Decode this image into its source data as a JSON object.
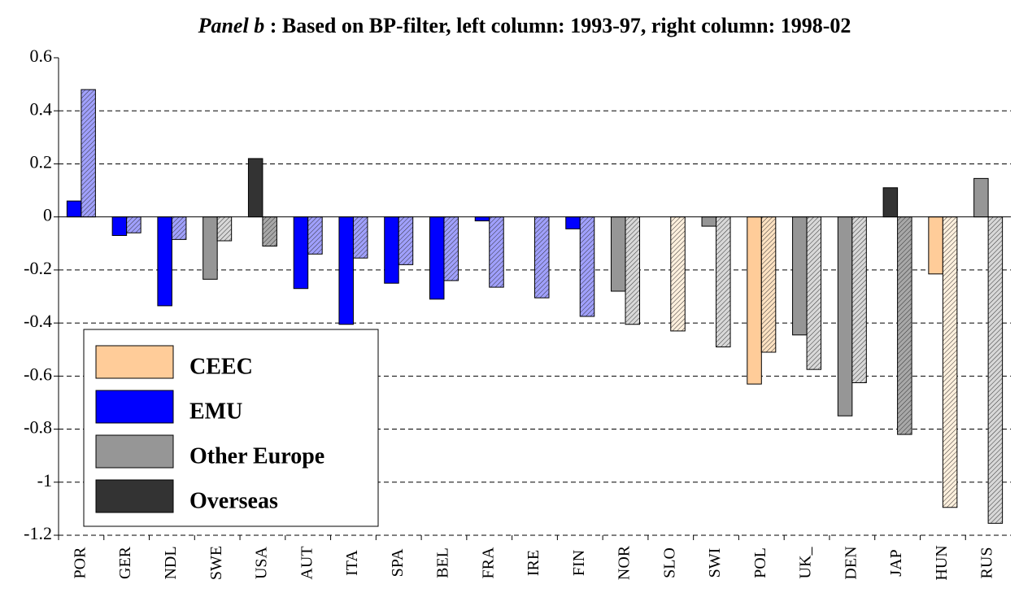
{
  "chart_data": {
    "type": "bar",
    "title_italic": "Panel b",
    "title": " : Based on BP-filter, left column: 1993-97, right column: 1998-02",
    "categories": [
      "POR",
      "GER",
      "NDL",
      "SWE",
      "USA",
      "AUT",
      "ITA",
      "SPA",
      "BEL",
      "FRA",
      "IRE",
      "FIN",
      "NOR",
      "SLO",
      "SWI",
      "POL",
      "UK_",
      "DEN",
      "JAP",
      "HUN",
      "RUS"
    ],
    "series": [
      {
        "hatch": false,
        "values": [
          0.06,
          -0.07,
          -0.335,
          -0.235,
          0.22,
          -0.27,
          -0.405,
          -0.25,
          -0.31,
          -0.015,
          null,
          -0.045,
          -0.28,
          null,
          -0.035,
          -0.63,
          -0.445,
          -0.75,
          0.11,
          -0.215,
          0.145
        ],
        "colors": [
          "#0000ff",
          "#0000ff",
          "#0000ff",
          "#969696",
          "#333333",
          "#0000ff",
          "#0000ff",
          "#0000ff",
          "#0000ff",
          "#0000ff",
          "#0000ff",
          "#0000ff",
          "#969696",
          "#ffcc99",
          "#969696",
          "#ffcc99",
          "#969696",
          "#969696",
          "#333333",
          "#ffcc99",
          "#969696"
        ]
      },
      {
        "hatch": true,
        "values": [
          0.48,
          -0.06,
          -0.085,
          -0.09,
          -0.11,
          -0.14,
          -0.155,
          -0.18,
          -0.24,
          -0.265,
          -0.305,
          -0.375,
          -0.405,
          -0.43,
          -0.49,
          -0.51,
          -0.575,
          -0.625,
          -0.82,
          -1.095,
          -1.155
        ],
        "colors": [
          "#a0a0ff",
          "#a0a0ff",
          "#a0a0ff",
          "#d8d8d8",
          "#a8a8a8",
          "#a0a0ff",
          "#a0a0ff",
          "#a0a0ff",
          "#a0a0ff",
          "#a0a0ff",
          "#a0a0ff",
          "#a0a0ff",
          "#d8d8d8",
          "#fff0dd",
          "#d8d8d8",
          "#ffe2c2",
          "#d8d8d8",
          "#d8d8d8",
          "#a8a8a8",
          "#fff0dd",
          "#d8d8d8"
        ]
      }
    ],
    "legend": [
      {
        "name": "CEEC",
        "color": "#ffcc99"
      },
      {
        "name": "EMU",
        "color": "#0000ff"
      },
      {
        "name": "Other Europe",
        "color": "#969696"
      },
      {
        "name": "Overseas",
        "color": "#333333"
      }
    ],
    "ylim": [
      -1.2,
      0.6
    ],
    "yticks": [
      -1.2,
      -1,
      -0.8,
      -0.6,
      -0.4,
      -0.2,
      0,
      0.2,
      0.4,
      0.6
    ],
    "grid": true
  }
}
